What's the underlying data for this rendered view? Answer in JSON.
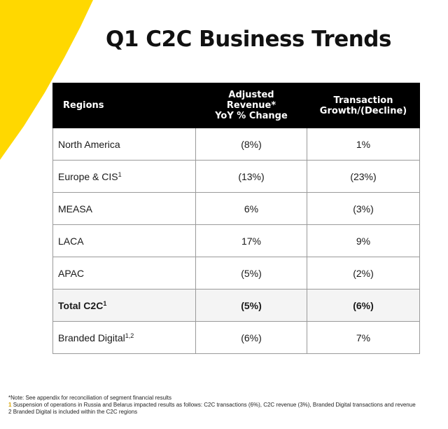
{
  "colors": {
    "accent": "#FFD800",
    "header_bg": "#000000",
    "border": "#9a9a9a"
  },
  "title": "Q1 C2C Business Trends",
  "table": {
    "headers": {
      "regions": "Regions",
      "revenue_lines": [
        "Adjusted",
        "Revenue*",
        "YoY % Change"
      ],
      "transaction_lines": [
        "Transaction",
        "Growth/(Decline)"
      ]
    },
    "rows": [
      {
        "region": "North America",
        "sup": "",
        "revenue": "(8%)",
        "transactions": "1%"
      },
      {
        "region": "Europe & CIS",
        "sup": "1",
        "revenue": "(13%)",
        "transactions": "(23%)"
      },
      {
        "region": "MEASA",
        "sup": "",
        "revenue": "6%",
        "transactions": "(3%)"
      },
      {
        "region": "LACA",
        "sup": "",
        "revenue": "17%",
        "transactions": "9%"
      },
      {
        "region": "APAC",
        "sup": "",
        "revenue": "(5%)",
        "transactions": "(2%)"
      },
      {
        "region": "Total C2C",
        "sup": "1",
        "revenue": "(5%)",
        "transactions": "(6%)"
      },
      {
        "region": "Branded Digital",
        "sup": "1,2",
        "revenue": "(6%)",
        "transactions": "7%"
      }
    ]
  },
  "footnotes": {
    "note": "*Note: See appendix for reconciliation of segment financial results",
    "fn1_marker": "1",
    "fn1": "Suspension of operations in Russia and Belarus impacted results as follows: C2C transactions (6%), C2C revenue (3%), Branded Digital transactions and revenue",
    "fn2_marker": "2",
    "fn2": "Branded Digital is included within the C2C regions"
  }
}
